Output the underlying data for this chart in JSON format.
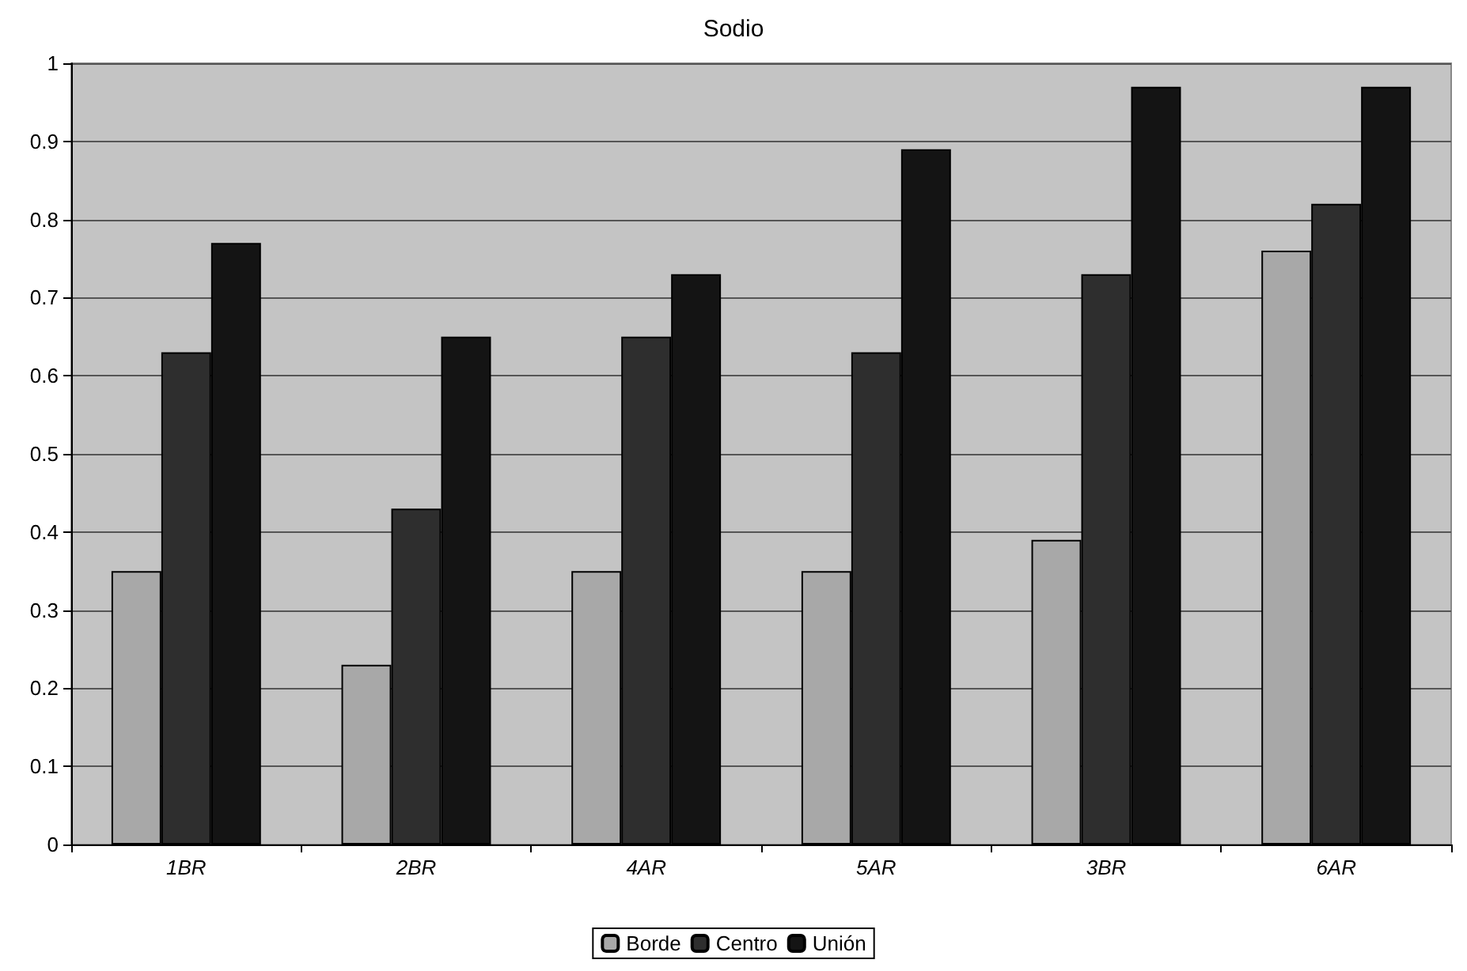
{
  "chart_data": {
    "type": "bar",
    "title": "Sodio",
    "categories": [
      "1BR",
      "2BR",
      "4AR",
      "5AR",
      "3BR",
      "6AR"
    ],
    "series": [
      {
        "name": "Borde",
        "color": "#a8a8a8",
        "values": [
          0.35,
          0.23,
          0.35,
          0.35,
          0.39,
          0.76
        ]
      },
      {
        "name": "Centro",
        "color": "#2e2e2e",
        "values": [
          0.63,
          0.43,
          0.65,
          0.63,
          0.73,
          0.82
        ]
      },
      {
        "name": "Unión",
        "color": "#141414",
        "values": [
          0.77,
          0.65,
          0.73,
          0.89,
          0.97,
          0.97
        ]
      }
    ],
    "ylim": [
      0,
      1
    ],
    "yticks": [
      0,
      0.1,
      0.2,
      0.3,
      0.4,
      0.5,
      0.6,
      0.7,
      0.8,
      0.9,
      1
    ],
    "grid": "y",
    "legend": "bottom"
  }
}
